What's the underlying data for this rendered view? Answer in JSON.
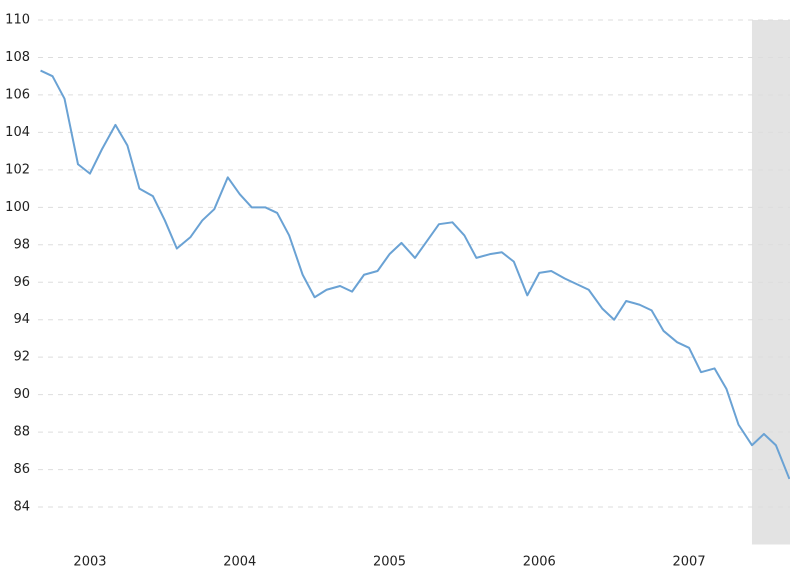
{
  "chart_data": {
    "type": "line",
    "x": [
      2002.67,
      2002.75,
      2002.83,
      2002.92,
      2003.0,
      2003.08,
      2003.17,
      2003.25,
      2003.33,
      2003.42,
      2003.5,
      2003.58,
      2003.67,
      2003.75,
      2003.83,
      2003.92,
      2004.0,
      2004.08,
      2004.17,
      2004.25,
      2004.33,
      2004.42,
      2004.5,
      2004.58,
      2004.67,
      2004.75,
      2004.83,
      2004.92,
      2005.0,
      2005.08,
      2005.17,
      2005.25,
      2005.33,
      2005.42,
      2005.5,
      2005.58,
      2005.67,
      2005.75,
      2005.83,
      2005.92,
      2006.0,
      2006.08,
      2006.17,
      2006.25,
      2006.33,
      2006.42,
      2006.5,
      2006.58,
      2006.67,
      2006.75,
      2006.83,
      2006.92,
      2007.0,
      2007.08,
      2007.17,
      2007.25,
      2007.33,
      2007.42,
      2007.5,
      2007.58,
      2007.67
    ],
    "series": [
      {
        "color": "#6aa2d4",
        "values": [
          107.3,
          107.0,
          105.8,
          102.3,
          101.8,
          103.1,
          104.4,
          103.3,
          101.0,
          100.6,
          99.3,
          97.8,
          98.4,
          99.3,
          99.9,
          101.6,
          100.7,
          100.0,
          100.0,
          99.7,
          98.5,
          96.4,
          95.2,
          95.6,
          95.8,
          95.5,
          96.4,
          96.6,
          97.5,
          98.1,
          97.3,
          98.2,
          99.1,
          99.2,
          98.5,
          97.3,
          97.5,
          97.6,
          97.1,
          95.3,
          96.5,
          96.6,
          96.2,
          95.9,
          95.6,
          94.6,
          94.0,
          95.0,
          94.8,
          94.5,
          93.4,
          92.8,
          92.5,
          91.2,
          91.4,
          90.3,
          88.4,
          87.3,
          87.9,
          87.3,
          85.5
        ]
      }
    ],
    "xlim": [
      2002.653,
      2007.674
    ],
    "xticks": [
      2003,
      2004,
      2005,
      2006,
      2007
    ],
    "ylim": [
      82,
      110
    ],
    "yticks": [
      84,
      86,
      88,
      90,
      92,
      94,
      96,
      98,
      100,
      102,
      104,
      106,
      108,
      110
    ],
    "grid": true,
    "shaded_range": [
      2007.42,
      2007.674
    ],
    "shade_color": "#e3e3e3"
  }
}
